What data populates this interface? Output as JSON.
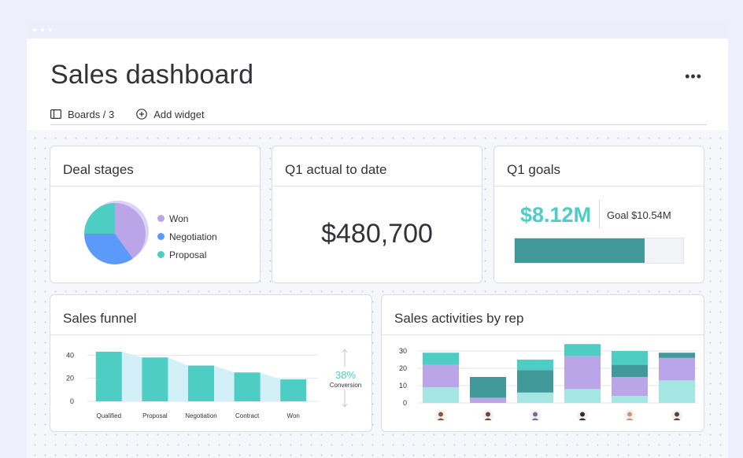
{
  "header": {
    "title": "Sales dashboard",
    "more_icon": "more-horizontal-icon",
    "toolbar": {
      "boards_label": "Boards / 3",
      "boards_icon": "board-icon",
      "add_widget_label": "Add widget",
      "add_widget_icon": "plus-circle-icon"
    }
  },
  "colors": {
    "teal": "#4ecdc4",
    "dark_teal": "#41999a",
    "purple": "#b9a5e8",
    "blue": "#5b9af9",
    "light_teal": "#a4e6e1",
    "funnel_fill": "#d3eff7"
  },
  "widgets": {
    "deal_stages": {
      "title": "Deal stages",
      "legend": [
        {
          "label": "Won",
          "color": "#b9a5e8"
        },
        {
          "label": "Negotiation",
          "color": "#5b9af9"
        },
        {
          "label": "Proposal",
          "color": "#4ecdc4"
        }
      ],
      "slices": [
        {
          "label": "Won",
          "value": 40,
          "color": "#b9a5e8"
        },
        {
          "label": "Negotiation",
          "value": 35,
          "color": "#5b9af9"
        },
        {
          "label": "Proposal",
          "value": 25,
          "color": "#4ecdc4"
        }
      ]
    },
    "q1_actual": {
      "title": "Q1 actual to date",
      "value": "$480,700"
    },
    "q1_goals": {
      "title": "Q1 goals",
      "value": "$8.12M",
      "goal_label": "Goal $10.54M",
      "progress": 0.77
    },
    "sales_funnel": {
      "title": "Sales funnel",
      "conversion_value": "38%",
      "conversion_label": "Conversion"
    },
    "sales_activities": {
      "title": "Sales activities by rep",
      "reps": [
        "avatar-1",
        "avatar-2",
        "avatar-3",
        "avatar-4",
        "avatar-5",
        "avatar-6"
      ]
    }
  },
  "chart_data": [
    {
      "type": "bar",
      "title": "Sales funnel",
      "categories": [
        "Qualified",
        "Proposal",
        "Negotiation",
        "Contract",
        "Won"
      ],
      "values": [
        43,
        38,
        31,
        25,
        19
      ],
      "ylim": [
        0,
        45
      ],
      "yticks": [
        "40",
        "20",
        "0"
      ]
    },
    {
      "type": "bar",
      "stacked": true,
      "title": "Sales activities by rep",
      "categories": [
        "Rep 1",
        "Rep 2",
        "Rep 3",
        "Rep 4",
        "Rep 5",
        "Rep 6"
      ],
      "series": [
        {
          "values": [
            9,
            0,
            6,
            8,
            4,
            13
          ],
          "color": "#a4e6e1"
        },
        {
          "values": [
            13,
            3,
            0,
            19,
            11,
            13
          ],
          "color": "#b9a5e8"
        },
        {
          "values": [
            0,
            12,
            13,
            0,
            7,
            3
          ],
          "color": "#41999a"
        },
        {
          "values": [
            7,
            0,
            6,
            7,
            8,
            0
          ],
          "color": "#4ecdc4"
        }
      ],
      "ylim": [
        0,
        32
      ],
      "yticks": [
        "30",
        "20",
        "10",
        "0"
      ]
    }
  ]
}
